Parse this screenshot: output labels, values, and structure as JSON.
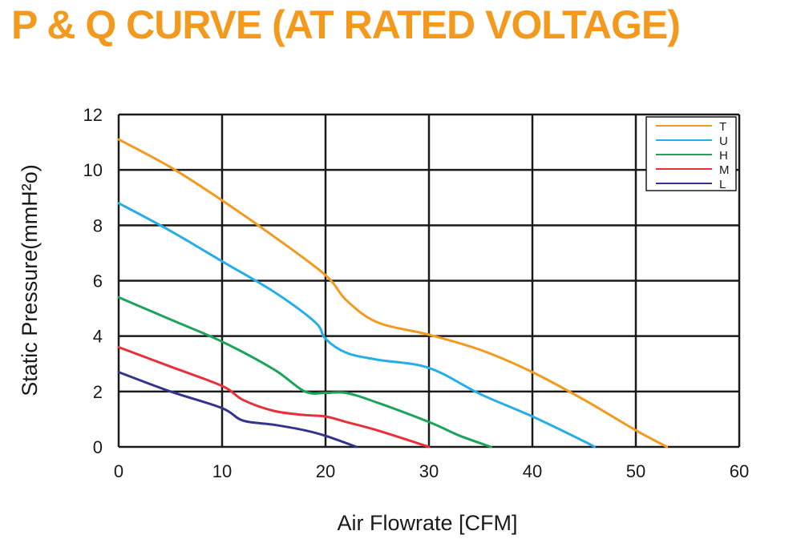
{
  "title": "P & Q CURVE (AT RATED VOLTAGE)",
  "colors": {
    "title": "#f39a1e",
    "T": "#f39a1e",
    "U": "#27aee8",
    "H": "#1ea35c",
    "M": "#e8303a",
    "L": "#34348e"
  },
  "chart_data": {
    "type": "line",
    "xlabel": "Air  Flowrate   [CFM]",
    "ylabel": "Static Pressure(mmH²o)",
    "xlim": [
      0,
      60
    ],
    "ylim": [
      0,
      12
    ],
    "xticks": [
      "0",
      "10",
      "20",
      "30",
      "40",
      "50",
      "60"
    ],
    "yticks": [
      "0",
      "2",
      "4",
      "6",
      "8",
      "10",
      "12"
    ],
    "grid": true,
    "legend_position": "top-right",
    "series": [
      {
        "name": "T",
        "color": "#f39a1e",
        "points": [
          [
            0,
            11.1
          ],
          [
            5,
            10.1
          ],
          [
            10,
            8.9
          ],
          [
            15,
            7.6
          ],
          [
            20,
            6.2
          ],
          [
            22,
            5.3
          ],
          [
            25,
            4.5
          ],
          [
            30,
            4.05
          ],
          [
            35,
            3.5
          ],
          [
            40,
            2.7
          ],
          [
            45,
            1.7
          ],
          [
            50,
            0.6
          ],
          [
            53,
            0
          ]
        ]
      },
      {
        "name": "U",
        "color": "#27aee8",
        "points": [
          [
            0,
            8.8
          ],
          [
            5,
            7.8
          ],
          [
            10,
            6.7
          ],
          [
            15,
            5.6
          ],
          [
            19,
            4.5
          ],
          [
            20,
            3.9
          ],
          [
            22,
            3.4
          ],
          [
            25,
            3.15
          ],
          [
            30,
            2.85
          ],
          [
            35,
            1.9
          ],
          [
            40,
            1.1
          ],
          [
            45,
            0.2
          ],
          [
            46,
            0
          ]
        ]
      },
      {
        "name": "H",
        "color": "#1ea35c",
        "points": [
          [
            0,
            5.4
          ],
          [
            5,
            4.6
          ],
          [
            10,
            3.8
          ],
          [
            15,
            2.8
          ],
          [
            18,
            2.0
          ],
          [
            20,
            1.95
          ],
          [
            22,
            1.95
          ],
          [
            25,
            1.6
          ],
          [
            30,
            0.9
          ],
          [
            33,
            0.4
          ],
          [
            36,
            0
          ]
        ]
      },
      {
        "name": "M",
        "color": "#e8303a",
        "points": [
          [
            0,
            3.6
          ],
          [
            5,
            2.9
          ],
          [
            10,
            2.2
          ],
          [
            12,
            1.7
          ],
          [
            15,
            1.3
          ],
          [
            18,
            1.15
          ],
          [
            20,
            1.1
          ],
          [
            22,
            0.9
          ],
          [
            25,
            0.6
          ],
          [
            30,
            0
          ]
        ]
      },
      {
        "name": "L",
        "color": "#34348e",
        "points": [
          [
            0,
            2.7
          ],
          [
            5,
            2.0
          ],
          [
            10,
            1.4
          ],
          [
            12,
            0.95
          ],
          [
            15,
            0.8
          ],
          [
            18,
            0.6
          ],
          [
            20,
            0.4
          ],
          [
            23,
            0
          ]
        ]
      }
    ]
  }
}
